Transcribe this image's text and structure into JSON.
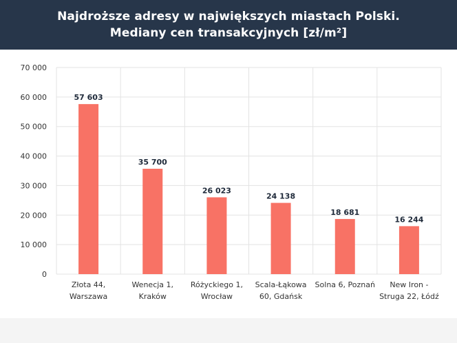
{
  "header": {
    "title_line1": "Najdroższe adresy w największych miastach Polski.",
    "title_line2": "Mediany cen transakcyjnych [zł/m²]"
  },
  "colors": {
    "header_bg": "#27364a",
    "bar": "#f87265",
    "grid": "#e3e3e3",
    "label_text": "#1f2a3a"
  },
  "chart_data": {
    "type": "bar",
    "title": "Najdroższe adresy w największych miastach Polski. Mediany cen transakcyjnych [zł/m²]",
    "categories": [
      [
        "Złota 44,",
        "Warszawa"
      ],
      [
        "Wenecja 1,",
        "Kraków"
      ],
      [
        "Różyckiego 1,",
        "Wrocław"
      ],
      [
        "Scala-Łąkowa",
        "60, Gdańsk"
      ],
      [
        "Solna 6, Poznań"
      ],
      [
        "New Iron -",
        "Struga 22, Łódź"
      ]
    ],
    "values": [
      57603,
      35700,
      26023,
      24138,
      18681,
      16244
    ],
    "value_labels": [
      "57 603",
      "35 700",
      "26 023",
      "24 138",
      "18 681",
      "16 244"
    ],
    "ylim": [
      0,
      70000
    ],
    "yticks": [
      0,
      10000,
      20000,
      30000,
      40000,
      50000,
      60000,
      70000
    ],
    "ytick_labels": [
      "0",
      "10 000",
      "20 000",
      "30 000",
      "40 000",
      "50 000",
      "60 000",
      "70 000"
    ],
    "grid": true,
    "legend": "none"
  }
}
